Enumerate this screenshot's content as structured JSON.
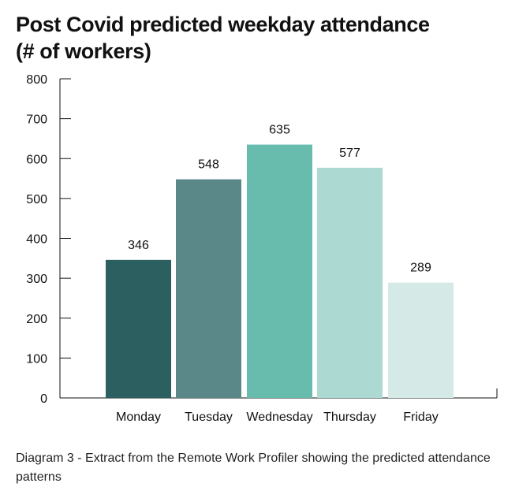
{
  "chart_data": {
    "type": "bar",
    "title_lines": [
      "Post Covid predicted weekday attendance",
      "(# of workers)"
    ],
    "categories": [
      "Monday",
      "Tuesday",
      "Wednesday",
      "Thursday",
      "Friday"
    ],
    "values": [
      346,
      548,
      635,
      577,
      289
    ],
    "value_labels": [
      "346",
      "548",
      "635",
      "577",
      "289"
    ],
    "bar_colors": [
      "#2b5f60",
      "#5a8788",
      "#68bcad",
      "#acd9d2",
      "#d5e9e7"
    ],
    "ylim": [
      0,
      800
    ],
    "yticks": [
      0,
      100,
      200,
      300,
      400,
      500,
      600,
      700,
      800
    ],
    "ytick_labels": [
      "0",
      "100",
      "200",
      "300",
      "400",
      "500",
      "600",
      "700",
      "800"
    ],
    "xlabel": "",
    "ylabel": "",
    "grid": false
  },
  "caption": "Diagram 3 - Extract from the Remote Work Profiler showing the predicted attendance patterns"
}
